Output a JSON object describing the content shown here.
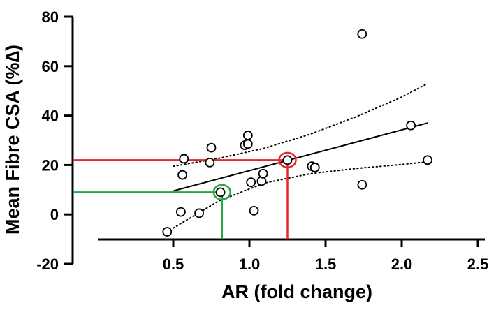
{
  "chart_data": {
    "type": "scatter",
    "title": "",
    "xlabel": "AR (fold change)",
    "ylabel": "Mean Fibre CSA (%∆)",
    "xlim": [
      0.45,
      2.5
    ],
    "ylim": [
      -20,
      80
    ],
    "x_ticks": [
      0.5,
      1.0,
      1.5,
      2.0,
      2.5
    ],
    "x_tick_labels": [
      "0.5",
      "1.0",
      "1.5",
      "2.0",
      "2.5"
    ],
    "y_ticks": [
      -20,
      0,
      20,
      40,
      60,
      80
    ],
    "y_tick_labels": [
      "-20",
      "0",
      "20",
      "40",
      "60",
      "80"
    ],
    "grid": false,
    "legend": "none",
    "series": [
      {
        "marker": "open-circle",
        "x": [
          0.46,
          0.55,
          0.56,
          0.57,
          0.67,
          0.74,
          0.75,
          0.81,
          0.97,
          0.99,
          0.99,
          1.01,
          1.03,
          1.08,
          1.09,
          1.25,
          1.41,
          1.43,
          1.74,
          1.74,
          2.06,
          2.17
        ],
        "y": [
          -7,
          1,
          16,
          22.5,
          0.5,
          21,
          27,
          9,
          28,
          28.5,
          32,
          13,
          1.5,
          13.5,
          16.5,
          22,
          19.5,
          19,
          12,
          73,
          36,
          22
        ]
      }
    ],
    "regression_line": {
      "x": [
        0.5,
        2.17
      ],
      "y": [
        9.5,
        37
      ]
    },
    "confidence_band_upper": {
      "x": [
        0.5,
        0.8,
        1.1,
        1.4,
        1.7,
        2.0,
        2.17
      ],
      "y": [
        19.5,
        22.7,
        26.8,
        32.5,
        39.5,
        47.5,
        53
      ]
    },
    "confidence_band_lower": {
      "x": [
        0.5,
        0.8,
        1.1,
        1.4,
        1.7,
        2.0,
        2.17
      ],
      "y": [
        -5.5,
        5.5,
        12.7,
        16.5,
        18.6,
        20.2,
        21.3
      ]
    },
    "annotations": [
      {
        "color": "#e8262a",
        "x": 1.25,
        "y": 22
      },
      {
        "color": "#28a745",
        "x": 0.82,
        "y": 9
      }
    ],
    "colors": {
      "data": "#000000",
      "red": "#e8262a",
      "green": "#28a745"
    }
  }
}
